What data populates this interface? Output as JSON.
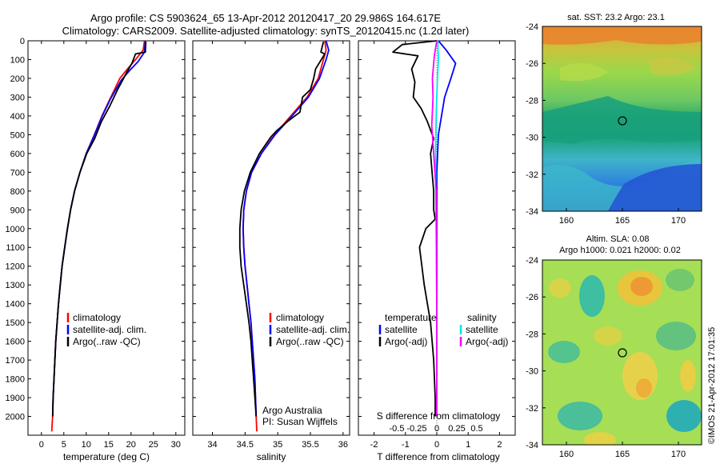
{
  "header": {
    "title_line1": "Argo profile: CS 5903624_65 13-Apr-2012 20120417_20 29.986S 164.617E",
    "title_line2": "Climatology: CARS2009. Satellite-adjusted climatology: synTS_20120415.nc (1.2d later)"
  },
  "colors": {
    "climatology": "#ff0000",
    "satellite": "#0000ff",
    "argo": "#000000",
    "satellite_s": "#00e5ee",
    "argo_s": "#ff00ff"
  },
  "chart_data": [
    {
      "id": "temperature",
      "type": "line",
      "xlabel": "temperature (deg C)",
      "ylabel": "",
      "xlim": [
        -3,
        32
      ],
      "ylim": [
        2100,
        0
      ],
      "xticks": [
        0,
        5,
        10,
        15,
        20,
        25,
        30
      ],
      "yticks": [
        0,
        100,
        200,
        300,
        400,
        500,
        600,
        700,
        800,
        900,
        1000,
        1100,
        1200,
        1300,
        1400,
        1500,
        1600,
        1700,
        1800,
        1900,
        2000
      ],
      "legend": [
        "climatology",
        "satellite-adj. clim.",
        "Argo(..raw -QC)"
      ],
      "series": [
        {
          "name": "climatology",
          "color": "#ff0000",
          "x": [
            23.0,
            22.7,
            21.0,
            19.2,
            17.5,
            15.5,
            13.5,
            11.8,
            10.0,
            8.6,
            7.4,
            6.5,
            5.8,
            5.2,
            4.6,
            4.2,
            3.8,
            3.5,
            3.2,
            3.0,
            2.8,
            2.6,
            2.5,
            2.4,
            2.3
          ],
          "y": [
            0,
            50,
            100,
            150,
            200,
            300,
            400,
            500,
            600,
            700,
            800,
            900,
            1000,
            1100,
            1200,
            1300,
            1400,
            1500,
            1600,
            1700,
            1800,
            1900,
            2000,
            2040,
            2080
          ]
        },
        {
          "name": "satellite-adj. clim.",
          "color": "#0000ff",
          "x": [
            23.2,
            23.0,
            21.6,
            19.6,
            17.8,
            15.4,
            13.4,
            11.7,
            10.0,
            8.6,
            7.4,
            6.5,
            5.8,
            5.2,
            4.6,
            4.2,
            3.8,
            3.5,
            3.2,
            3.0,
            2.8,
            2.6,
            2.5
          ],
          "y": [
            0,
            60,
            110,
            160,
            210,
            310,
            410,
            510,
            600,
            700,
            800,
            900,
            1000,
            1100,
            1200,
            1300,
            1400,
            1500,
            1600,
            1700,
            1800,
            1900,
            2000
          ]
        },
        {
          "name": "Argo(..raw -QC)",
          "color": "#000000",
          "x": [
            23.3,
            23.2,
            21.0,
            20.2,
            19.0,
            17.0,
            15.2,
            13.4,
            11.9,
            10.1,
            8.6,
            7.4,
            6.5,
            5.8,
            5.2,
            4.6,
            4.2,
            3.8,
            3.5,
            3.2,
            3.0,
            2.8,
            2.6,
            2.5
          ],
          "y": [
            5,
            60,
            70,
            120,
            170,
            260,
            350,
            430,
            520,
            600,
            700,
            800,
            900,
            1000,
            1100,
            1200,
            1300,
            1400,
            1500,
            1600,
            1700,
            1800,
            1900,
            2000
          ]
        }
      ]
    },
    {
      "id": "salinity",
      "type": "line",
      "xlabel": "salinity",
      "ylabel": "",
      "xlim": [
        33.7,
        36.1
      ],
      "ylim": [
        2100,
        0
      ],
      "xticks": [
        34,
        34.5,
        35,
        35.5,
        36
      ],
      "legend": [
        "climatology",
        "satellite-adj. clim.",
        "Argo(..raw -QC)"
      ],
      "annotation": [
        "Argo Australia",
        "PI: Susan Wijffels"
      ],
      "series": [
        {
          "name": "climatology",
          "color": "#ff0000",
          "x": [
            35.72,
            35.74,
            35.7,
            35.62,
            35.45,
            35.2,
            34.95,
            34.75,
            34.6,
            34.52,
            34.48,
            34.47,
            34.48,
            34.5,
            34.53,
            34.56,
            34.59,
            34.61,
            34.63,
            34.65,
            34.66,
            34.67,
            34.68
          ],
          "y": [
            0,
            50,
            100,
            200,
            300,
            400,
            500,
            600,
            700,
            800,
            900,
            1000,
            1100,
            1200,
            1300,
            1400,
            1500,
            1600,
            1700,
            1800,
            1900,
            2000,
            2080
          ]
        },
        {
          "name": "satellite-adj. clim.",
          "color": "#0000ff",
          "x": [
            35.74,
            35.78,
            35.74,
            35.64,
            35.47,
            35.22,
            34.96,
            34.75,
            34.6,
            34.52,
            34.48,
            34.47,
            34.48,
            34.5,
            34.53,
            34.56,
            34.59,
            34.61,
            34.63,
            34.65,
            34.66,
            34.67
          ],
          "y": [
            0,
            50,
            100,
            200,
            300,
            400,
            500,
            600,
            700,
            800,
            900,
            1000,
            1100,
            1200,
            1300,
            1400,
            1500,
            1600,
            1700,
            1800,
            1900,
            2000
          ]
        },
        {
          "name": "Argo(..raw -QC)",
          "color": "#000000",
          "x": [
            35.7,
            35.66,
            35.72,
            35.58,
            35.55,
            35.5,
            35.38,
            35.34,
            35.15,
            34.98,
            34.9,
            34.72,
            34.58,
            34.49,
            34.44,
            34.42,
            34.42,
            34.44,
            34.48,
            34.52,
            34.56,
            34.59,
            34.61,
            34.63,
            34.65,
            34.66,
            34.67
          ],
          "y": [
            5,
            60,
            70,
            150,
            200,
            260,
            300,
            380,
            430,
            480,
            510,
            600,
            700,
            800,
            900,
            1000,
            1100,
            1200,
            1300,
            1400,
            1500,
            1600,
            1700,
            1800,
            1900,
            1950,
            2000
          ]
        }
      ]
    },
    {
      "id": "difference",
      "type": "line",
      "xlabel": "T difference from climatology",
      "x2label": "S difference from climatology",
      "ylabel": "",
      "xlim": [
        -2.5,
        2.5
      ],
      "ylim": [
        2100,
        0
      ],
      "xticks": [
        -2,
        -1,
        0,
        1,
        2
      ],
      "x2ticks": [
        -0.5,
        -0.25,
        0,
        0.25,
        0.5
      ],
      "legend_left_title": "temperature",
      "legend_right_title": "salinity",
      "legend": [
        "satellite",
        "Argo(-adj)",
        "satellite",
        "Argo(-adj)"
      ],
      "series": [
        {
          "name": "satellite",
          "color": "#0000ff",
          "x": [
            0.05,
            0.3,
            0.6,
            0.45,
            0.25,
            0.15,
            0.05,
            0.0,
            0.0,
            0.0,
            0.0,
            0.0,
            0.0
          ],
          "y": [
            0,
            50,
            120,
            200,
            300,
            400,
            500,
            700,
            900,
            1200,
            1500,
            1800,
            2000
          ]
        },
        {
          "name": "Argo(-adj)",
          "color": "#000000",
          "x": [
            0.0,
            -1.1,
            -1.4,
            -0.6,
            -0.8,
            -0.7,
            -0.75,
            -0.5,
            -0.3,
            -0.1,
            -0.2,
            -0.15,
            -0.1,
            -0.1,
            -0.05,
            -0.35,
            -0.55,
            -0.4,
            -0.2,
            -0.1,
            -0.05,
            -0.05
          ],
          "y": [
            0,
            20,
            60,
            80,
            150,
            220,
            300,
            360,
            430,
            520,
            600,
            700,
            800,
            900,
            950,
            1000,
            1100,
            1300,
            1500,
            1700,
            1900,
            2000
          ]
        },
        {
          "name": "satellite",
          "color": "#00e5ee",
          "x": [
            0.03,
            0.05,
            0.02,
            -0.02,
            -0.04,
            -0.03,
            -0.02,
            0.0,
            0.0,
            0.0
          ],
          "y": [
            0,
            100,
            200,
            400,
            600,
            800,
            1000,
            1400,
            1800,
            2000
          ]
        },
        {
          "name": "Argo(-adj)",
          "color": "#ff00ff",
          "x": [
            0.0,
            -0.08,
            -0.14,
            -0.12,
            -0.16,
            -0.1,
            -0.02,
            -0.01,
            0.0,
            0.0
          ],
          "y": [
            0,
            80,
            200,
            300,
            450,
            600,
            800,
            1100,
            1500,
            2000
          ]
        }
      ]
    }
  ],
  "maps": {
    "sst": {
      "title": "sat. SST: 23.2 Argo: 23.1",
      "lat_ticks": [
        "-24",
        "-26",
        "-28",
        "-30",
        "-32",
        "-34"
      ],
      "lon_ticks": [
        "160",
        "165",
        "170"
      ]
    },
    "sla": {
      "title_line1": "Altim. SLA: 0.08",
      "title_line2": "Argo h1000: 0.021 h2000: 0.02",
      "lat_ticks": [
        "-24",
        "-26",
        "-28",
        "-30",
        "-32",
        "-34"
      ],
      "lon_ticks": [
        "160",
        "165",
        "170"
      ]
    },
    "side_label": "©IMOS 21-Apr-2012 17:01:35"
  }
}
